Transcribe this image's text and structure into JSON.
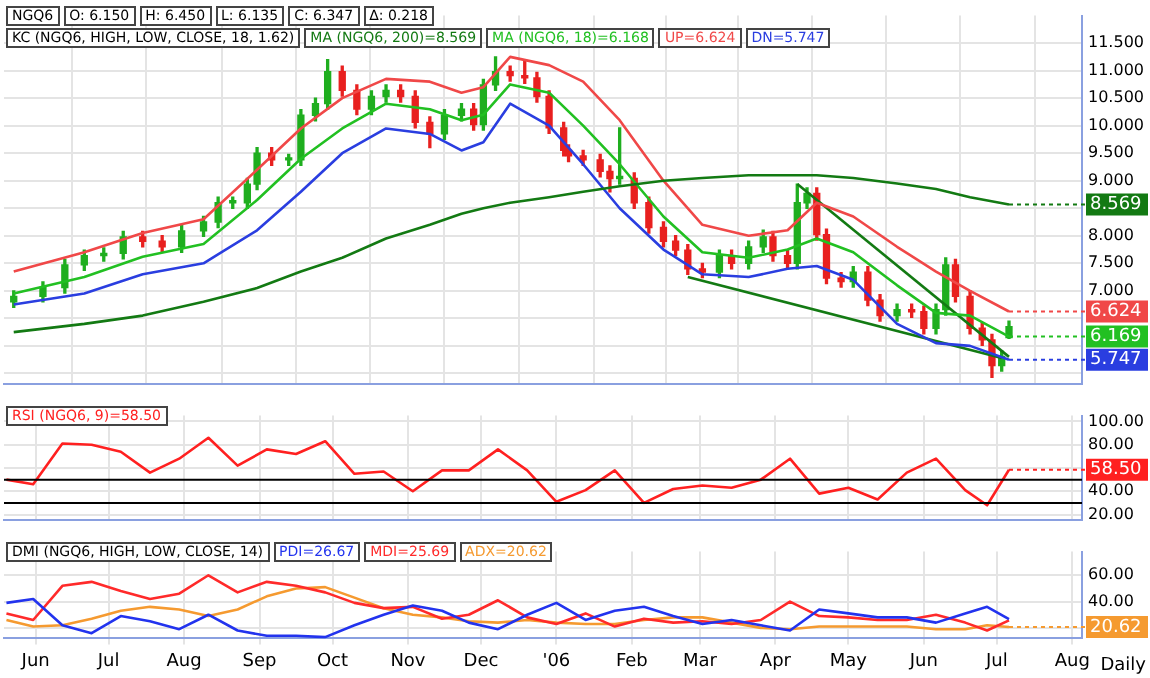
{
  "chart_data": [
    {
      "type": "candlestick",
      "legend": "top left",
      "legend_title": "KC (NGQ6, HIGH, LOW, CLOSE, 18, 1.62)",
      "grid": true,
      "tick_labels": "y",
      "xlim": [
        "2005-06-02",
        "2006-08-19"
      ],
      "xticks": [
        {
          "value": "2005-06-15",
          "label": null
        },
        {
          "value": "2005-07-15",
          "label": null
        },
        {
          "value": "2005-08-15",
          "label": null
        },
        {
          "value": "2005-09-15",
          "label": null
        },
        {
          "value": "2005-10-15",
          "label": null
        },
        {
          "value": "2005-11-15",
          "label": null
        },
        {
          "value": "2005-12-15",
          "label": null
        },
        {
          "value": "2006-01-15",
          "label": null
        },
        {
          "value": "2006-02-15",
          "label": null
        },
        {
          "value": "2006-03-15",
          "label": null
        },
        {
          "value": "2006-04-15",
          "label": null
        },
        {
          "value": "2006-05-15",
          "label": null
        },
        {
          "value": "2006-06-15",
          "label": null
        },
        {
          "value": "2006-07-15",
          "label": null
        },
        {
          "value": "2006-08-15",
          "label": null
        }
      ],
      "ylim": [
        5.3,
        12.0
      ],
      "yticks": [
        {
          "value": 5.5,
          "label": null
        },
        {
          "value": 6.0,
          "label": null
        },
        {
          "value": 6.5,
          "label": null
        },
        {
          "value": 7.0,
          "label": "7.000"
        },
        {
          "value": 7.5,
          "label": "7.500"
        },
        {
          "value": 8.0,
          "label": "8.000"
        },
        {
          "value": 8.5,
          "label": null
        },
        {
          "value": 9.0,
          "label": "9.000"
        },
        {
          "value": 9.5,
          "label": "9.500"
        },
        {
          "value": 10.0,
          "label": "10.000"
        },
        {
          "value": 10.5,
          "label": "10.500"
        },
        {
          "value": 11.0,
          "label": "11.000"
        },
        {
          "value": 11.5,
          "label": "11.500"
        }
      ],
      "x": [
        "2005-06-06",
        "2005-06-18",
        "2005-06-27",
        "2005-07-05",
        "2005-07-13",
        "2005-07-21",
        "2005-07-29",
        "2005-08-06",
        "2005-08-14",
        "2005-08-23",
        "2005-08-29",
        "2005-09-04",
        "2005-09-10",
        "2005-09-14",
        "2005-09-20",
        "2005-09-27",
        "2005-10-02",
        "2005-10-08",
        "2005-10-13",
        "2005-10-19",
        "2005-10-25",
        "2005-10-31",
        "2005-11-06",
        "2005-11-12",
        "2005-11-18",
        "2005-11-24",
        "2005-11-30",
        "2005-12-07",
        "2005-12-12",
        "2005-12-16",
        "2005-12-21",
        "2005-12-27",
        "2006-01-02",
        "2006-01-07",
        "2006-01-12",
        "2006-01-18",
        "2006-01-20",
        "2006-01-26",
        "2006-02-02",
        "2006-02-06",
        "2006-02-10",
        "2006-02-16",
        "2006-02-22",
        "2006-02-28",
        "2006-03-05",
        "2006-03-10",
        "2006-03-16",
        "2006-03-23",
        "2006-03-28",
        "2006-04-04",
        "2006-04-10",
        "2006-04-14",
        "2006-04-20",
        "2006-04-24",
        "2006-04-28",
        "2006-05-02",
        "2006-05-06",
        "2006-05-12",
        "2006-05-17",
        "2006-05-23",
        "2006-05-28",
        "2006-06-04",
        "2006-06-10",
        "2006-06-15",
        "2006-06-20",
        "2006-06-24",
        "2006-06-28",
        "2006-07-04",
        "2006-07-09",
        "2006-07-13",
        "2006-07-17",
        "2006-07-20"
      ],
      "ohlc": [
        [
          6.8,
          7.0,
          6.7,
          6.9
        ],
        [
          6.9,
          7.16,
          6.8,
          7.06
        ],
        [
          7.06,
          7.57,
          6.96,
          7.47
        ],
        [
          7.47,
          7.74,
          7.37,
          7.64
        ],
        [
          7.64,
          7.78,
          7.54,
          7.68
        ],
        [
          7.68,
          8.08,
          7.58,
          7.98
        ],
        [
          7.98,
          8.08,
          7.8,
          7.9
        ],
        [
          7.9,
          8.0,
          7.7,
          7.8
        ],
        [
          7.8,
          8.19,
          7.7,
          8.09
        ],
        [
          8.09,
          8.35,
          7.99,
          8.25
        ],
        [
          8.25,
          8.7,
          8.15,
          8.6
        ],
        [
          8.6,
          8.7,
          8.5,
          8.6
        ],
        [
          8.6,
          9.04,
          8.5,
          8.94
        ],
        [
          8.94,
          9.6,
          8.84,
          9.5
        ],
        [
          9.5,
          9.6,
          9.28,
          9.38
        ],
        [
          9.38,
          9.48,
          9.28,
          9.38
        ],
        [
          9.38,
          10.29,
          9.28,
          10.19
        ],
        [
          10.19,
          10.5,
          10.09,
          10.4
        ],
        [
          10.4,
          11.2,
          10.3,
          10.98
        ],
        [
          10.98,
          11.08,
          10.54,
          10.64
        ],
        [
          10.64,
          10.74,
          10.2,
          10.3
        ],
        [
          10.3,
          10.63,
          10.2,
          10.53
        ],
        [
          10.53,
          10.74,
          10.43,
          10.64
        ],
        [
          10.64,
          10.74,
          10.43,
          10.53
        ],
        [
          10.53,
          10.63,
          9.96,
          10.06
        ],
        [
          10.06,
          10.16,
          9.6,
          9.85
        ],
        [
          9.85,
          10.29,
          9.75,
          10.19
        ],
        [
          10.19,
          10.4,
          10.09,
          10.3
        ],
        [
          10.3,
          10.4,
          9.92,
          10.02
        ],
        [
          10.02,
          10.84,
          9.92,
          10.74
        ],
        [
          10.74,
          11.25,
          10.64,
          10.98
        ],
        [
          10.98,
          11.08,
          10.81,
          10.91
        ],
        [
          10.91,
          11.2,
          10.77,
          10.87
        ],
        [
          10.87,
          10.97,
          10.43,
          10.53
        ],
        [
          10.53,
          10.63,
          9.86,
          9.96
        ],
        [
          9.96,
          10.06,
          9.45,
          9.55
        ],
        [
          9.55,
          9.65,
          9.35,
          9.45
        ],
        [
          9.45,
          9.55,
          9.28,
          9.38
        ],
        [
          9.38,
          9.48,
          9.07,
          9.17
        ],
        [
          9.17,
          9.27,
          8.8,
          9.04
        ],
        [
          9.04,
          9.96,
          8.94,
          9.04
        ],
        [
          9.04,
          9.14,
          8.5,
          8.6
        ],
        [
          8.6,
          8.7,
          8.05,
          8.15
        ],
        [
          8.15,
          8.25,
          7.8,
          7.9
        ],
        [
          7.9,
          8.0,
          7.64,
          7.74
        ],
        [
          7.74,
          7.84,
          7.3,
          7.4
        ],
        [
          7.4,
          7.5,
          7.24,
          7.34
        ],
        [
          7.34,
          7.74,
          7.24,
          7.64
        ],
        [
          7.64,
          7.74,
          7.4,
          7.5
        ],
        [
          7.5,
          7.9,
          7.4,
          7.8
        ],
        [
          7.8,
          8.1,
          7.7,
          7.98
        ],
        [
          7.98,
          8.08,
          7.54,
          7.64
        ],
        [
          7.64,
          7.74,
          7.4,
          7.5
        ],
        [
          7.5,
          8.94,
          7.4,
          8.6
        ],
        [
          8.6,
          8.87,
          8.5,
          8.77
        ],
        [
          8.77,
          8.87,
          7.92,
          8.02
        ],
        [
          8.02,
          8.12,
          7.13,
          7.23
        ],
        [
          7.23,
          7.33,
          7.07,
          7.17
        ],
        [
          7.17,
          7.44,
          7.07,
          7.34
        ],
        [
          7.34,
          7.44,
          6.73,
          6.83
        ],
        [
          6.83,
          6.93,
          6.45,
          6.55
        ],
        [
          6.55,
          6.76,
          6.45,
          6.66
        ],
        [
          6.66,
          6.76,
          6.52,
          6.62
        ],
        [
          6.62,
          6.72,
          6.22,
          6.32
        ],
        [
          6.32,
          6.76,
          6.22,
          6.66
        ],
        [
          6.66,
          7.6,
          6.56,
          7.47
        ],
        [
          7.47,
          7.57,
          6.8,
          6.9
        ],
        [
          6.9,
          7.0,
          6.22,
          6.32
        ],
        [
          6.32,
          6.42,
          6.01,
          6.11
        ],
        [
          6.11,
          6.21,
          5.43,
          5.64
        ],
        [
          5.64,
          5.91,
          5.54,
          5.81
        ],
        [
          6.15,
          6.45,
          6.135,
          6.347
        ]
      ],
      "colors": [
        "#1fae1f",
        "#1fae1f",
        "#1fae1f",
        "#1fae1f",
        "#1fae1f",
        "#1fae1f",
        "#e8201f",
        "#e8201f",
        "#1fae1f",
        "#1fae1f",
        "#1fae1f",
        "#1fae1f",
        "#1fae1f",
        "#1fae1f",
        "#e8201f",
        "#1fae1f",
        "#1fae1f",
        "#1fae1f",
        "#1fae1f",
        "#e8201f",
        "#e8201f",
        "#1fae1f",
        "#1fae1f",
        "#e8201f",
        "#e8201f",
        "#e8201f",
        "#1fae1f",
        "#1fae1f",
        "#e8201f",
        "#1fae1f",
        "#1fae1f",
        "#e8201f",
        "#e8201f",
        "#e8201f",
        "#e8201f",
        "#e8201f",
        "#e8201f",
        "#e8201f",
        "#e8201f",
        "#e8201f",
        "#1fae1f",
        "#e8201f",
        "#e8201f",
        "#e8201f",
        "#e8201f",
        "#e8201f",
        "#e8201f",
        "#1fae1f",
        "#e8201f",
        "#1fae1f",
        "#1fae1f",
        "#e8201f",
        "#e8201f",
        "#1fae1f",
        "#1fae1f",
        "#e8201f",
        "#e8201f",
        "#e8201f",
        "#1fae1f",
        "#e8201f",
        "#e8201f",
        "#1fae1f",
        "#e8201f",
        "#e8201f",
        "#1fae1f",
        "#1fae1f",
        "#e8201f",
        "#e8201f",
        "#e8201f",
        "#e8201f",
        "#1fae1f",
        "#1fae1f"
      ],
      "series": [
        {
          "type": "line",
          "name": "MA (NGQ6, 200)=8.569",
          "color": "#137a13",
          "x": [
            "2005-06-06",
            "2005-07-05",
            "2005-07-29",
            "2005-08-23",
            "2005-09-14",
            "2005-10-02",
            "2005-10-19",
            "2005-11-06",
            "2005-11-24",
            "2005-12-07",
            "2005-12-16",
            "2005-12-27",
            "2006-01-12",
            "2006-01-26",
            "2006-02-10",
            "2006-02-28",
            "2006-03-16",
            "2006-04-04",
            "2006-04-20",
            "2006-05-02",
            "2006-05-17",
            "2006-06-04",
            "2006-06-20",
            "2006-07-04",
            "2006-07-20"
          ],
          "values": [
            6.25,
            6.4,
            6.55,
            6.8,
            7.05,
            7.35,
            7.6,
            7.95,
            8.2,
            8.4,
            8.5,
            8.6,
            8.7,
            8.8,
            8.9,
            9.0,
            9.05,
            9.1,
            9.1,
            9.1,
            9.05,
            8.95,
            8.85,
            8.7,
            8.569
          ],
          "value_labels": [
            null,
            null,
            null,
            null,
            null,
            null,
            null,
            null,
            null,
            null,
            null,
            null,
            null,
            null,
            null,
            null,
            null,
            null,
            null,
            null,
            null,
            null,
            null,
            null,
            "8.569"
          ]
        },
        {
          "type": "line",
          "name": "MA (NGQ6, 18)=6.168",
          "color": "#22c022",
          "x": [
            "2005-06-06",
            "2005-07-05",
            "2005-07-29",
            "2005-08-23",
            "2005-09-14",
            "2005-10-02",
            "2005-10-19",
            "2005-11-06",
            "2005-11-24",
            "2005-12-07",
            "2005-12-16",
            "2005-12-27",
            "2006-01-12",
            "2006-01-26",
            "2006-02-10",
            "2006-02-28",
            "2006-03-16",
            "2006-04-04",
            "2006-04-20",
            "2006-05-02",
            "2006-05-17",
            "2006-06-04",
            "2006-06-20",
            "2006-07-04",
            "2006-07-20"
          ],
          "values": [
            6.95,
            7.25,
            7.62,
            7.85,
            8.65,
            9.4,
            9.95,
            10.4,
            10.3,
            10.1,
            10.2,
            10.75,
            10.6,
            10.0,
            9.3,
            8.35,
            7.7,
            7.6,
            7.75,
            7.95,
            7.7,
            7.1,
            6.6,
            6.55,
            6.169
          ],
          "value_labels": [
            null,
            null,
            null,
            null,
            null,
            null,
            null,
            null,
            null,
            null,
            null,
            null,
            null,
            null,
            null,
            null,
            null,
            null,
            null,
            null,
            null,
            null,
            null,
            null,
            "6.169"
          ]
        },
        {
          "type": "line",
          "name": "UP=6.624",
          "color": "#f04848",
          "x": [
            "2005-06-06",
            "2005-07-05",
            "2005-07-29",
            "2005-08-23",
            "2005-09-14",
            "2005-10-02",
            "2005-10-19",
            "2005-11-06",
            "2005-11-24",
            "2005-12-07",
            "2005-12-16",
            "2005-12-27",
            "2006-01-12",
            "2006-01-26",
            "2006-02-10",
            "2006-02-28",
            "2006-03-16",
            "2006-04-04",
            "2006-04-20",
            "2006-05-02",
            "2006-05-17",
            "2006-06-04",
            "2006-06-20",
            "2006-07-04",
            "2006-07-20"
          ],
          "values": [
            7.35,
            7.7,
            8.05,
            8.3,
            9.2,
            9.95,
            10.5,
            10.85,
            10.8,
            10.6,
            10.7,
            11.25,
            11.1,
            10.8,
            10.1,
            9.0,
            8.2,
            8.0,
            8.1,
            8.6,
            8.35,
            7.8,
            7.35,
            7.0,
            6.624
          ],
          "value_labels": [
            null,
            null,
            null,
            null,
            null,
            null,
            null,
            null,
            null,
            null,
            null,
            null,
            null,
            null,
            null,
            null,
            null,
            null,
            null,
            null,
            null,
            null,
            null,
            null,
            "6.624"
          ]
        },
        {
          "type": "line",
          "name": "DN=5.747",
          "color": "#2a3ee0",
          "x": [
            "2005-06-06",
            "2005-07-05",
            "2005-07-29",
            "2005-08-23",
            "2005-09-14",
            "2005-10-02",
            "2005-10-19",
            "2005-11-06",
            "2005-11-24",
            "2005-12-07",
            "2005-12-16",
            "2005-12-27",
            "2006-01-12",
            "2006-01-26",
            "2006-02-10",
            "2006-02-28",
            "2006-03-16",
            "2006-04-04",
            "2006-04-20",
            "2006-05-02",
            "2006-05-17",
            "2006-06-04",
            "2006-06-20",
            "2006-07-04",
            "2006-07-20"
          ],
          "values": [
            6.75,
            6.95,
            7.3,
            7.5,
            8.1,
            8.8,
            9.5,
            9.95,
            9.85,
            9.55,
            9.7,
            10.4,
            10.0,
            9.3,
            8.5,
            7.75,
            7.3,
            7.25,
            7.4,
            7.45,
            7.2,
            6.4,
            6.05,
            6.0,
            5.747
          ],
          "value_labels": [
            null,
            null,
            null,
            null,
            null,
            null,
            null,
            null,
            null,
            null,
            null,
            null,
            null,
            null,
            null,
            null,
            null,
            null,
            null,
            null,
            null,
            null,
            null,
            null,
            "5.747"
          ]
        },
        {
          "type": "line",
          "color": "#137a13",
          "x": [
            "2006-03-10",
            "2006-07-17"
          ],
          "values": [
            7.25,
            5.78
          ]
        },
        {
          "type": "line",
          "color": "#137a13",
          "x": [
            "2006-04-24",
            "2006-07-20"
          ],
          "values": [
            8.94,
            5.8
          ]
        }
      ],
      "annotations": [
        "NGQ6",
        "O: 6.150",
        "H: 6.450",
        "L: 6.135",
        "C: 6.347",
        "Δ: 0.218"
      ]
    },
    {
      "type": "line",
      "legend": "top left",
      "grid": true,
      "tick_labels": "y",
      "xlim": [
        "2005-06-02",
        "2006-08-19"
      ],
      "xticks": [
        {
          "value": "2005-06-15",
          "label": null
        },
        {
          "value": "2005-07-15",
          "label": null
        },
        {
          "value": "2005-08-15",
          "label": null
        },
        {
          "value": "2005-09-15",
          "label": null
        },
        {
          "value": "2005-10-15",
          "label": null
        },
        {
          "value": "2005-11-15",
          "label": null
        },
        {
          "value": "2005-12-15",
          "label": null
        },
        {
          "value": "2006-01-15",
          "label": null
        },
        {
          "value": "2006-02-15",
          "label": null
        },
        {
          "value": "2006-03-15",
          "label": null
        },
        {
          "value": "2006-04-15",
          "label": null
        },
        {
          "value": "2006-05-15",
          "label": null
        },
        {
          "value": "2006-06-15",
          "label": null
        },
        {
          "value": "2006-07-15",
          "label": null
        },
        {
          "value": "2006-08-15",
          "label": null
        }
      ],
      "ylim": [
        15,
        105
      ],
      "yticks": [
        {
          "value": 20,
          "label": "20.00"
        },
        {
          "value": 40,
          "label": "40.00"
        },
        {
          "value": 60,
          "label": null
        },
        {
          "value": 80,
          "label": "80.00"
        },
        {
          "value": 100,
          "label": "100.00"
        }
      ],
      "x": [
        "2005-06-03",
        "2005-06-14",
        "2005-06-26",
        "2005-07-08",
        "2005-07-20",
        "2005-08-01",
        "2005-08-13",
        "2005-08-25",
        "2005-09-06",
        "2005-09-18",
        "2005-09-30",
        "2005-10-12",
        "2005-10-24",
        "2005-11-05",
        "2005-11-17",
        "2005-11-29",
        "2005-12-10",
        "2005-12-22",
        "2006-01-03",
        "2006-01-15",
        "2006-01-27",
        "2006-02-08",
        "2006-02-20",
        "2006-03-04",
        "2006-03-16",
        "2006-03-28",
        "2006-04-09",
        "2006-04-21",
        "2006-05-03",
        "2006-05-15",
        "2006-05-27",
        "2006-06-08",
        "2006-06-20",
        "2006-07-02",
        "2006-07-11",
        "2006-07-20"
      ],
      "series": [
        {
          "name": "RSI (NGQ6, 9)=58.50",
          "color": "#ff2020",
          "values": [
            50,
            46,
            81,
            80,
            74,
            56,
            68,
            86,
            62,
            76,
            72,
            83,
            55,
            57,
            40,
            58,
            58,
            76,
            58,
            31,
            41,
            58,
            30,
            42,
            45,
            43,
            50,
            68,
            38,
            43,
            33,
            56,
            68,
            41,
            28,
            58.5
          ],
          "value_labels": [
            null,
            null,
            null,
            null,
            null,
            null,
            null,
            null,
            null,
            null,
            null,
            null,
            null,
            null,
            null,
            null,
            null,
            null,
            null,
            null,
            null,
            null,
            null,
            null,
            null,
            null,
            null,
            null,
            null,
            null,
            null,
            null,
            null,
            null,
            null,
            "58.50"
          ]
        }
      ],
      "ref_lines": [
        {
          "axis": "y",
          "value": 50,
          "color": "#000000"
        },
        {
          "axis": "y",
          "value": 30,
          "color": "#000000"
        }
      ]
    },
    {
      "type": "line",
      "legend": "top left",
      "legend_title": "DMI (NGQ6, HIGH, LOW, CLOSE, 14)",
      "grid": true,
      "xlim": [
        "2005-06-02",
        "2006-08-19"
      ],
      "xticks": [
        {
          "value": "2005-06-15",
          "label": "Jun"
        },
        {
          "value": "2005-07-15",
          "label": "Jul"
        },
        {
          "value": "2005-08-15",
          "label": "Aug"
        },
        {
          "value": "2005-09-15",
          "label": "Sep"
        },
        {
          "value": "2005-10-15",
          "label": "Oct"
        },
        {
          "value": "2005-11-15",
          "label": "Nov"
        },
        {
          "value": "2005-12-15",
          "label": "Dec"
        },
        {
          "value": "2006-01-15",
          "label": "'06"
        },
        {
          "value": "2006-02-15",
          "label": "Feb"
        },
        {
          "value": "2006-03-15",
          "label": "Mar"
        },
        {
          "value": "2006-04-15",
          "label": "Apr"
        },
        {
          "value": "2006-05-15",
          "label": "May"
        },
        {
          "value": "2006-06-15",
          "label": "Jun"
        },
        {
          "value": "2006-07-15",
          "label": "Jul"
        },
        {
          "value": "2006-08-15",
          "label": "Aug"
        }
      ],
      "ylim": [
        12,
        78
      ],
      "yticks": [
        {
          "value": 20,
          "label": null
        },
        {
          "value": 40,
          "label": "40.00"
        },
        {
          "value": 60,
          "label": "60.00"
        }
      ],
      "x": [
        "2005-06-03",
        "2005-06-14",
        "2005-06-26",
        "2005-07-08",
        "2005-07-20",
        "2005-08-01",
        "2005-08-13",
        "2005-08-25",
        "2005-09-06",
        "2005-09-18",
        "2005-09-30",
        "2005-10-12",
        "2005-10-24",
        "2005-11-05",
        "2005-11-17",
        "2005-11-29",
        "2005-12-10",
        "2005-12-22",
        "2006-01-03",
        "2006-01-15",
        "2006-01-27",
        "2006-02-08",
        "2006-02-20",
        "2006-03-04",
        "2006-03-16",
        "2006-03-28",
        "2006-04-09",
        "2006-04-21",
        "2006-05-03",
        "2006-05-15",
        "2006-05-27",
        "2006-06-08",
        "2006-06-20",
        "2006-07-02",
        "2006-07-11",
        "2006-07-20"
      ],
      "series": [
        {
          "name": "PDI=26.67",
          "color": "#2233ee",
          "values": [
            39,
            42,
            22,
            16,
            29,
            25,
            19,
            30,
            18,
            14,
            14,
            13,
            22,
            30,
            37,
            33,
            24,
            19,
            30,
            39,
            26,
            33,
            36,
            29,
            23,
            26,
            22,
            18,
            34,
            31,
            28,
            28,
            24,
            31,
            36,
            26.67
          ]
        },
        {
          "name": "MDI=25.69",
          "color": "#ff2a2a",
          "values": [
            31,
            26,
            52,
            55,
            48,
            42,
            46,
            60,
            47,
            55,
            52,
            47,
            39,
            35,
            36,
            27,
            30,
            41,
            28,
            23,
            31,
            21,
            27,
            24,
            25,
            23,
            26,
            40,
            29,
            28,
            26,
            26,
            30,
            24,
            18,
            25.69
          ]
        },
        {
          "name": "ADX=20.62",
          "color": "#f59a30",
          "values": [
            26,
            21,
            22,
            27,
            33,
            36,
            34,
            29,
            34,
            44,
            50,
            51,
            43,
            35,
            30,
            28,
            25,
            24,
            26,
            24,
            23,
            23,
            26,
            28,
            28,
            24,
            20,
            19,
            21,
            21,
            21,
            21,
            19,
            19,
            22,
            20.62
          ],
          "value_labels": [
            null,
            null,
            null,
            null,
            null,
            null,
            null,
            null,
            null,
            null,
            null,
            null,
            null,
            null,
            null,
            null,
            null,
            null,
            null,
            null,
            null,
            null,
            null,
            null,
            null,
            null,
            null,
            null,
            null,
            null,
            null,
            null,
            null,
            null,
            null,
            "20.62"
          ]
        }
      ],
      "annotations": [
        "Daily"
      ]
    }
  ]
}
